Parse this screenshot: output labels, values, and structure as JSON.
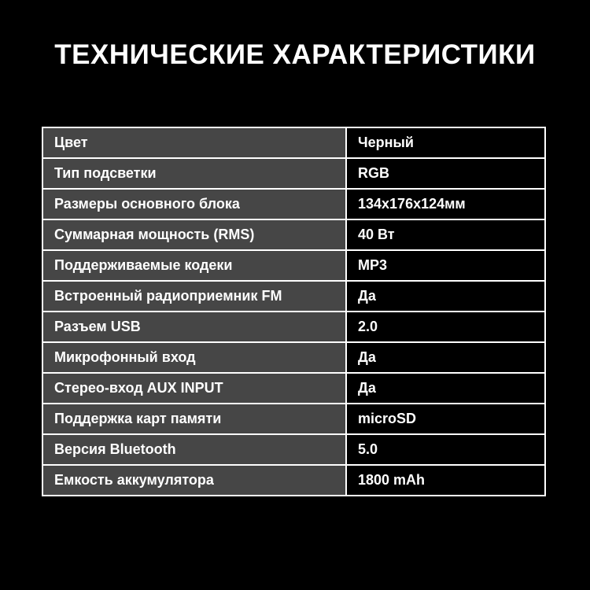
{
  "title": "ТЕХНИЧЕСКИЕ ХАРАКТЕРИСТИКИ",
  "colors": {
    "background": "#000000",
    "label_cell": "#464646",
    "value_cell": "#000000",
    "border": "#ffffff"
  },
  "specs": [
    {
      "label": "Цвет",
      "value": "Черный"
    },
    {
      "label": "Тип подсветки",
      "value": "RGB"
    },
    {
      "label": "Размеры основного блока",
      "value": "134x176x124мм"
    },
    {
      "label": "Суммарная мощность (RMS)",
      "value": "40 Вт"
    },
    {
      "label": "Поддерживаемые кодеки",
      "value": "MP3"
    },
    {
      "label": "Встроенный радиоприемник FM",
      "value": "Да"
    },
    {
      "label": "Разъем USB",
      "value": "2.0"
    },
    {
      "label": "Микрофонный вход",
      "value": "Да"
    },
    {
      "label": "Стерео-вход AUX INPUT",
      "value": "Да"
    },
    {
      "label": "Поддержка карт памяти",
      "value": "microSD"
    },
    {
      "label": "Версия Bluetooth",
      "value": "5.0"
    },
    {
      "label": "Емкость аккумулятора",
      "value": "1800 mAh"
    }
  ]
}
